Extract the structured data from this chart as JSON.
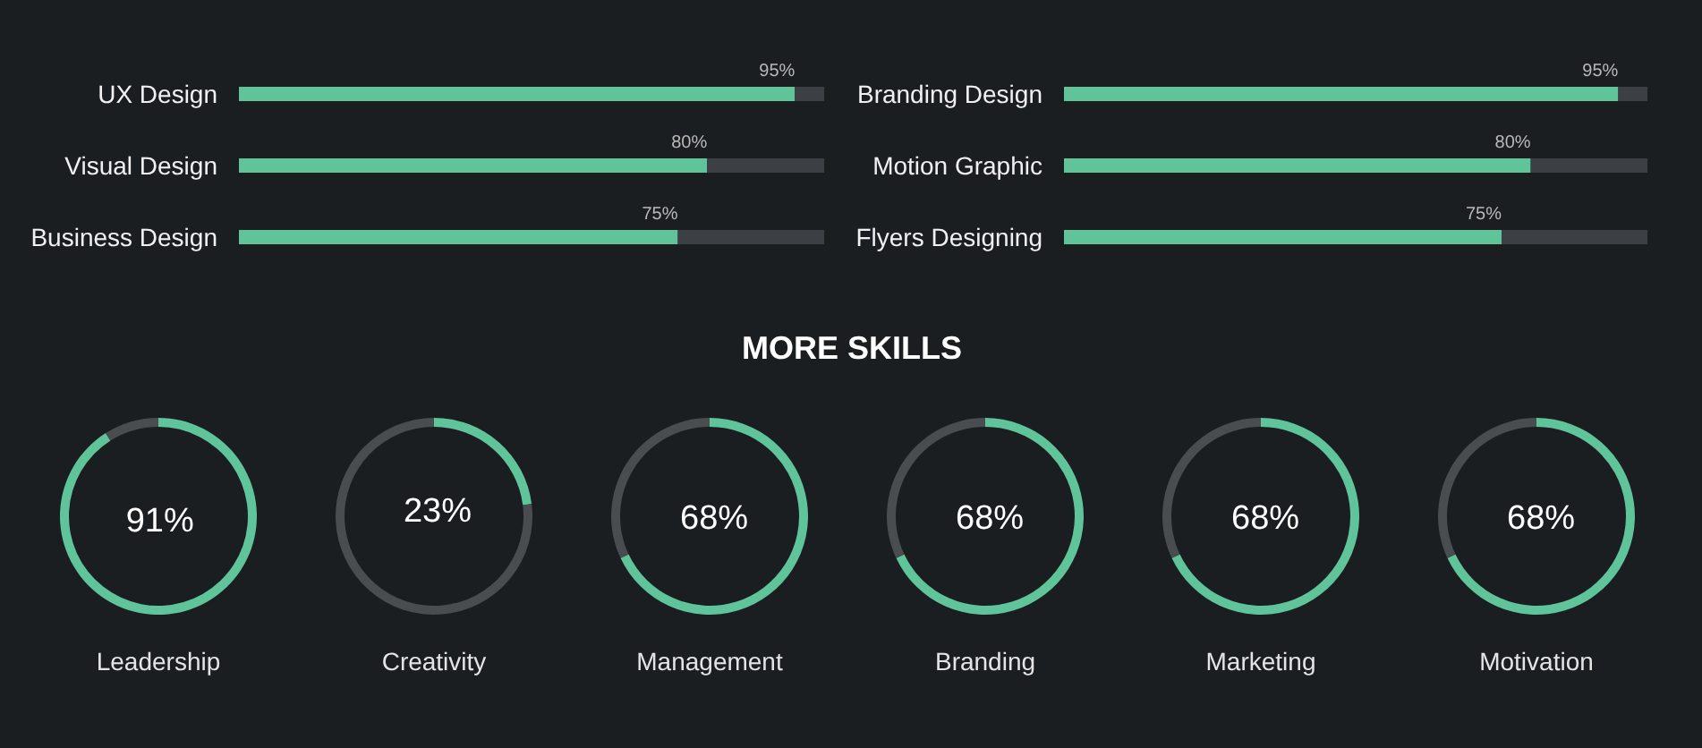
{
  "chart_data": [
    {
      "type": "bar",
      "orientation": "horizontal",
      "stacked": true,
      "categories": [
        "UX Design",
        "Visual Design",
        "Business Design"
      ],
      "xlim": [
        0,
        100
      ],
      "tick_labels": "y",
      "series": [
        {
          "color": "#5fc49a",
          "values": [
            95,
            80,
            75
          ],
          "value_labels": [
            "95%",
            "80%",
            "75%"
          ]
        },
        {
          "color": "#3c4044",
          "values": [
            5,
            20,
            25
          ]
        }
      ]
    },
    {
      "type": "bar",
      "orientation": "horizontal",
      "stacked": true,
      "categories": [
        "Branding Design",
        "Motion Graphic",
        "Flyers Designing"
      ],
      "xlim": [
        0,
        100
      ],
      "tick_labels": "y",
      "series": [
        {
          "color": "#5fc49a",
          "values": [
            95,
            80,
            75
          ],
          "value_labels": [
            "95%",
            "80%",
            "75%"
          ]
        },
        {
          "color": "#3c4044",
          "values": [
            5,
            20,
            25
          ]
        }
      ]
    },
    {
      "type": "other",
      "title": "MORE SKILLS"
    },
    {
      "type": "donut",
      "title": "Leadership",
      "categories": [
        null,
        null
      ],
      "values": [
        91,
        9
      ],
      "colors": [
        "#5fc49a",
        "#4a4d50"
      ],
      "value_labels": [
        "91%",
        null
      ]
    },
    {
      "type": "donut",
      "title": "Creativity",
      "categories": [
        null,
        null
      ],
      "values": [
        23,
        77
      ],
      "colors": [
        "#5fc49a",
        "#4a4d50"
      ],
      "value_labels": [
        "23%",
        null
      ]
    },
    {
      "type": "donut",
      "title": "Management",
      "categories": [
        null,
        null
      ],
      "values": [
        68,
        32
      ],
      "colors": [
        "#5fc49a",
        "#4a4d50"
      ],
      "value_labels": [
        "68%",
        null
      ]
    },
    {
      "type": "donut",
      "title": "Branding",
      "categories": [
        null,
        null
      ],
      "values": [
        68,
        32
      ],
      "colors": [
        "#5fc49a",
        "#4a4d50"
      ],
      "value_labels": [
        "68%",
        null
      ]
    },
    {
      "type": "donut",
      "title": "Marketing",
      "categories": [
        null,
        null
      ],
      "values": [
        68,
        32
      ],
      "colors": [
        "#5fc49a",
        "#4a4d50"
      ],
      "value_labels": [
        "68%",
        null
      ]
    },
    {
      "type": "donut",
      "title": "Motivation",
      "categories": [
        null,
        null
      ],
      "values": [
        68,
        32
      ],
      "colors": [
        "#5fc49a",
        "#4a4d50"
      ],
      "value_labels": [
        "68%",
        null
      ]
    }
  ]
}
